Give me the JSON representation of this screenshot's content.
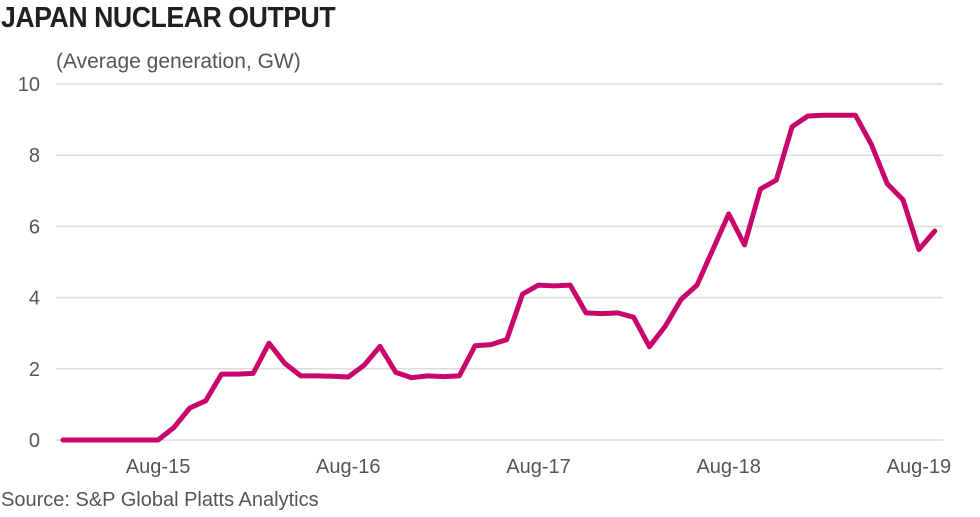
{
  "chart_data": {
    "type": "line",
    "title": "JAPAN NUCLEAR OUTPUT",
    "subtitle": "(Average generation, GW)",
    "source": "Source: S&P Global Platts Analytics",
    "xlabel": "",
    "ylabel": "",
    "ylim": [
      0,
      10
    ],
    "yticks": [
      0,
      2,
      4,
      6,
      8,
      10
    ],
    "xticks": [
      "Aug-15",
      "Aug-16",
      "Aug-17",
      "Aug-18",
      "Aug-19"
    ],
    "x_start": "Feb-15",
    "x_end": "Sep-19",
    "grid": true,
    "line_color": "#c8056a",
    "series": [
      {
        "values": [
          0,
          0,
          0,
          0,
          0,
          0,
          0,
          0.35,
          0.9,
          1.1,
          1.85,
          1.85,
          1.87,
          2.72,
          2.15,
          1.8,
          1.8,
          1.79,
          1.77,
          2.1,
          2.63,
          1.9,
          1.75,
          1.8,
          1.78,
          1.8,
          2.65,
          2.68,
          2.82,
          4.1,
          4.35,
          4.33,
          4.35,
          3.57,
          3.55,
          3.57,
          3.45,
          2.62,
          3.2,
          3.95,
          4.35,
          5.35,
          6.35,
          5.48,
          7.05,
          7.3,
          8.8,
          9.1,
          9.12,
          9.12,
          9.12,
          8.3,
          7.2,
          6.75,
          5.35,
          5.87
        ]
      }
    ]
  }
}
